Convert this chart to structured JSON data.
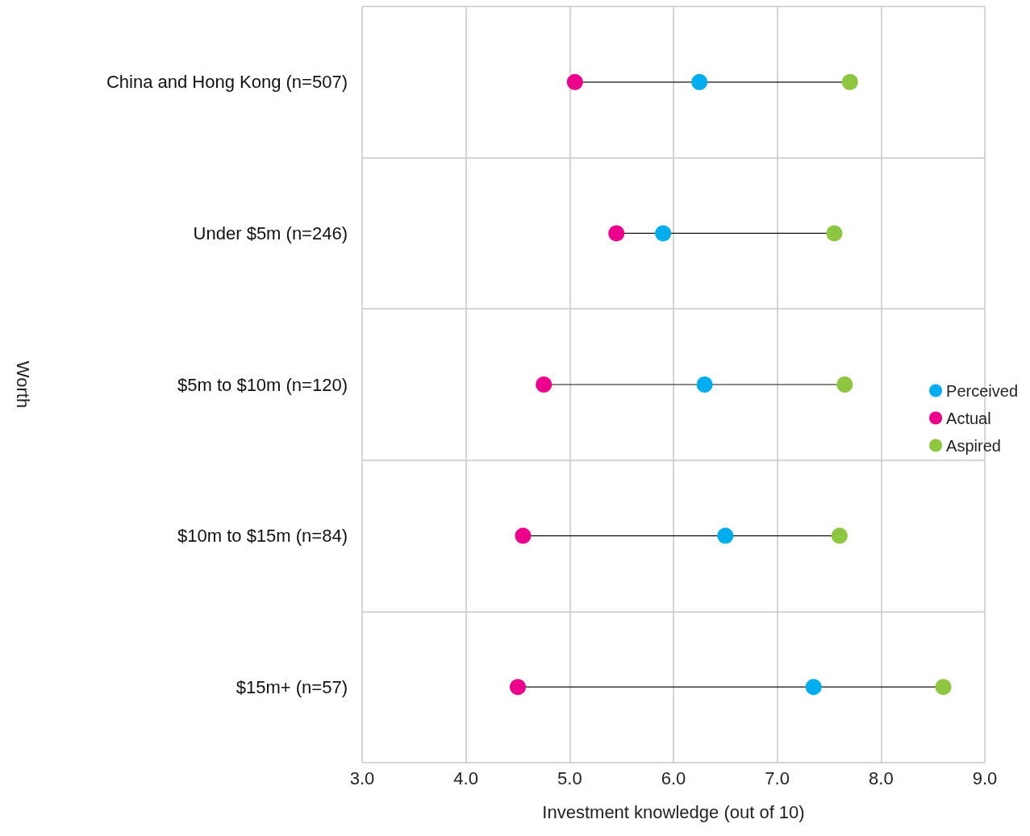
{
  "chart_data": {
    "type": "scatter",
    "orientation": "horizontal",
    "xlabel": "Investment knowledge (out of 10)",
    "ylabel": "Worth",
    "categories": [
      "China and Hong Kong (n=507)",
      "Under $5m (n=246)",
      "$5m to $10m (n=120)",
      "$10m to $15m (n=84)",
      "$15m+ (n=57)"
    ],
    "series": [
      {
        "name": "Perceived",
        "color": "#00aeef",
        "values": [
          6.25,
          5.9,
          6.3,
          6.5,
          7.35
        ]
      },
      {
        "name": "Actual",
        "color": "#ec008c",
        "values": [
          5.05,
          5.45,
          4.75,
          4.55,
          4.5
        ]
      },
      {
        "name": "Aspired",
        "color": "#8dc63f",
        "values": [
          7.7,
          7.55,
          7.65,
          7.6,
          8.6
        ]
      }
    ],
    "xlim": [
      3,
      9
    ],
    "xticks": [
      {
        "value": 3,
        "label": "3.0"
      },
      {
        "value": 4,
        "label": "4.0"
      },
      {
        "value": 5,
        "label": "5.0"
      },
      {
        "value": 6,
        "label": "6.0"
      },
      {
        "value": 7,
        "label": "7.0"
      },
      {
        "value": 8,
        "label": "8.0"
      },
      {
        "value": 9,
        "label": "9.0"
      }
    ],
    "grid": true,
    "legend": "right",
    "marker": "circle"
  }
}
